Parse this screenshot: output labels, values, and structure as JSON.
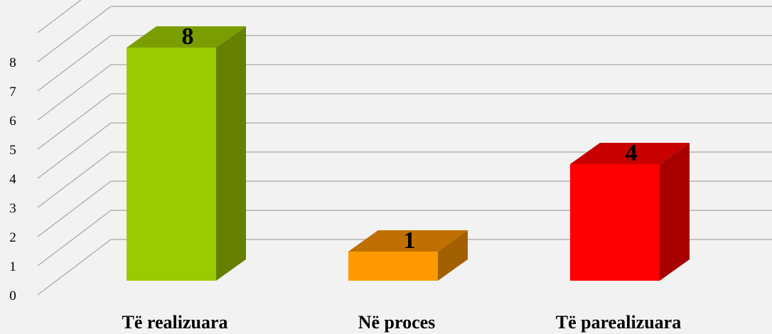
{
  "chart_data": {
    "type": "bar",
    "style": "3d-column",
    "title": "",
    "xlabel": "",
    "ylabel": "",
    "categories": [
      "Të realizuara",
      "Në proces",
      "Të parealizuara"
    ],
    "values": [
      8,
      1,
      4
    ],
    "data_labels": [
      "8",
      "1",
      "4"
    ],
    "ylim": [
      0,
      8
    ],
    "yticks": [
      "0",
      "1",
      "2",
      "3",
      "4",
      "5",
      "6",
      "7",
      "8"
    ],
    "grid": true,
    "legend": "none",
    "colors": [
      {
        "front": "#99cc00",
        "top": "#7a9e00",
        "side": "#668000"
      },
      {
        "front": "#ff9900",
        "top": "#c07000",
        "side": "#a36000"
      },
      {
        "front": "#ff0000",
        "top": "#c80000",
        "side": "#a80000"
      }
    ],
    "background": "#f2f2f2",
    "gridline_color": "#a6a6a6"
  }
}
